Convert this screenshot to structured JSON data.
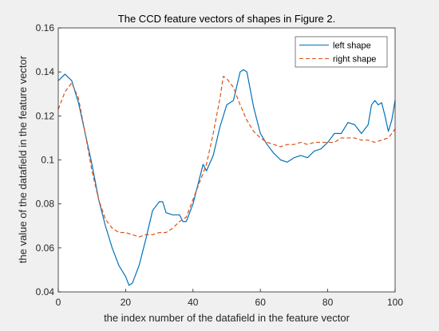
{
  "chart_data": {
    "type": "line",
    "title": "The CCD feature vectors of shapes in Figure 2.",
    "xlabel": "the index number of the datafield in the feature vector",
    "ylabel": "the value of the datafield in the feature vector",
    "xlim": [
      0,
      100
    ],
    "ylim": [
      0.04,
      0.16
    ],
    "xticks": [
      "0",
      "20",
      "40",
      "60",
      "80",
      "100"
    ],
    "yticks": [
      "0.04",
      "0.06",
      "0.08",
      "0.1",
      "0.12",
      "0.14",
      "0.16"
    ],
    "grid": false,
    "legend_position": "top-right",
    "series": [
      {
        "name": "left shape",
        "color": "#0072bd",
        "style": "solid",
        "x": [
          0,
          2,
          4,
          6,
          8,
          10,
          12,
          14,
          16,
          18,
          20,
          21,
          22,
          24,
          26,
          28,
          30,
          31,
          32,
          34,
          36,
          37,
          38,
          40,
          42,
          43,
          44,
          46,
          48,
          50,
          52,
          54,
          55,
          56,
          58,
          60,
          62,
          64,
          66,
          68,
          70,
          72,
          74,
          76,
          78,
          80,
          82,
          84,
          86,
          88,
          90,
          92,
          93,
          94,
          95,
          96,
          97,
          98,
          99,
          100
        ],
        "y": [
          0.136,
          0.139,
          0.136,
          0.126,
          0.112,
          0.098,
          0.082,
          0.07,
          0.06,
          0.052,
          0.047,
          0.043,
          0.044,
          0.052,
          0.064,
          0.077,
          0.081,
          0.081,
          0.076,
          0.075,
          0.075,
          0.072,
          0.072,
          0.08,
          0.092,
          0.098,
          0.095,
          0.102,
          0.115,
          0.125,
          0.127,
          0.14,
          0.141,
          0.14,
          0.124,
          0.112,
          0.107,
          0.103,
          0.1,
          0.099,
          0.101,
          0.102,
          0.101,
          0.104,
          0.105,
          0.108,
          0.112,
          0.112,
          0.117,
          0.116,
          0.112,
          0.116,
          0.125,
          0.127,
          0.125,
          0.126,
          0.12,
          0.113,
          0.118,
          0.127
        ]
      },
      {
        "name": "right shape",
        "color": "#d95319",
        "style": "dashed",
        "x": [
          0,
          2,
          4,
          6,
          8,
          10,
          12,
          14,
          16,
          18,
          20,
          22,
          24,
          26,
          28,
          30,
          32,
          34,
          36,
          38,
          40,
          42,
          44,
          46,
          48,
          49,
          50,
          52,
          54,
          56,
          58,
          60,
          62,
          64,
          66,
          68,
          70,
          72,
          74,
          76,
          78,
          80,
          82,
          84,
          86,
          88,
          90,
          92,
          94,
          96,
          98,
          100
        ],
        "y": [
          0.123,
          0.131,
          0.135,
          0.128,
          0.112,
          0.095,
          0.082,
          0.073,
          0.069,
          0.067,
          0.067,
          0.066,
          0.065,
          0.066,
          0.066,
          0.067,
          0.067,
          0.069,
          0.072,
          0.074,
          0.082,
          0.09,
          0.098,
          0.112,
          0.128,
          0.138,
          0.137,
          0.133,
          0.125,
          0.118,
          0.113,
          0.11,
          0.108,
          0.107,
          0.106,
          0.107,
          0.107,
          0.108,
          0.107,
          0.108,
          0.108,
          0.108,
          0.108,
          0.11,
          0.11,
          0.11,
          0.109,
          0.109,
          0.108,
          0.109,
          0.11,
          0.114
        ]
      }
    ]
  }
}
